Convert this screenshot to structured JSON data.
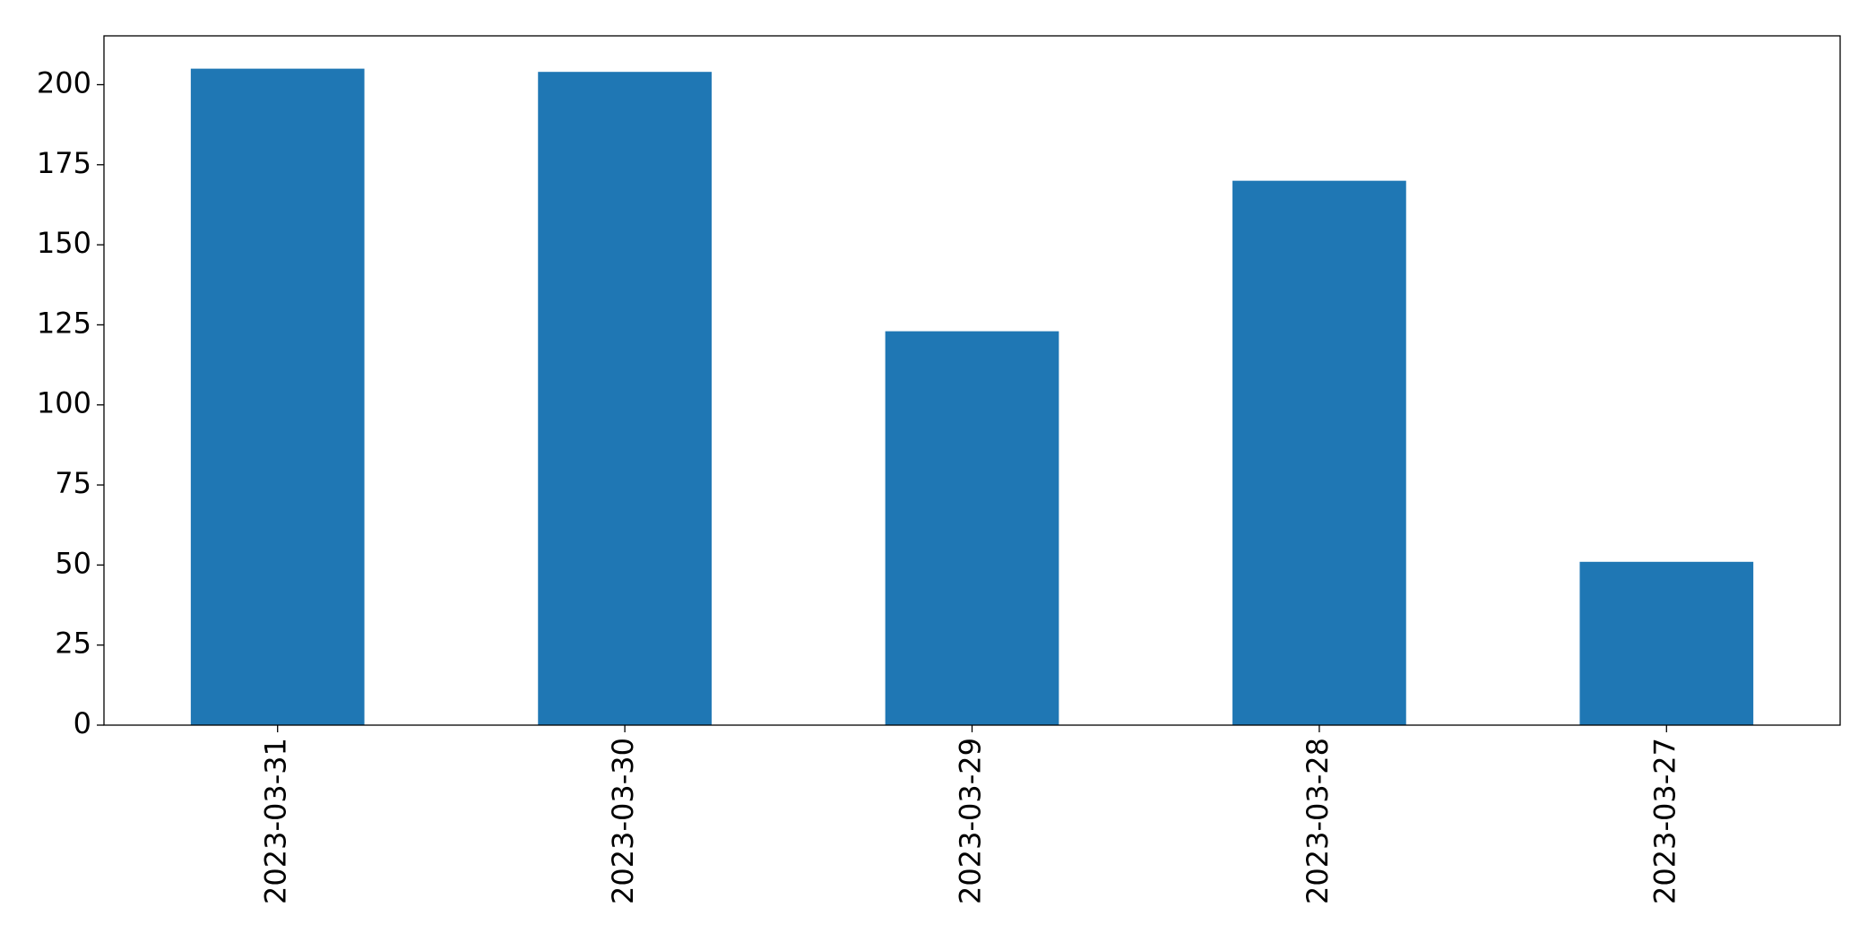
{
  "chart_data": {
    "type": "bar",
    "categories": [
      "2023-03-31",
      "2023-03-30",
      "2023-03-29",
      "2023-03-28",
      "2023-03-27"
    ],
    "values": [
      205,
      204,
      123,
      170,
      51
    ],
    "color": "#1f77b4",
    "ylim": [
      0,
      215.25
    ],
    "yticks": [
      0,
      25,
      50,
      75,
      100,
      125,
      150,
      175,
      200
    ],
    "grid": false
  }
}
